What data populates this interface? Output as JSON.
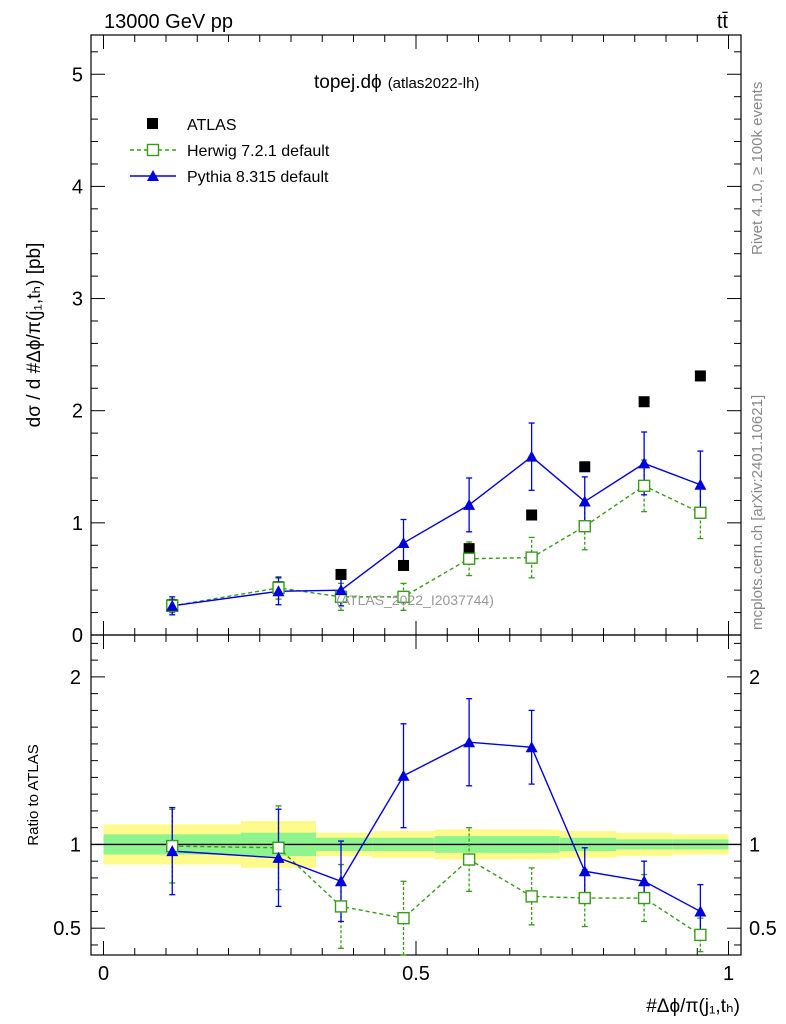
{
  "header": {
    "left": "13000 GeV pp",
    "right": "tt̄"
  },
  "side_labels": {
    "rivet": "Rivet 4.1.0, ≥ 100k events",
    "mcplots": "mcplots.cern.ch [arXiv:2401.10621]"
  },
  "plot": {
    "title_main": "topej.dϕ",
    "title_sub": "(atlas2022-lh)",
    "watermark": "(ATLAS_2022_I2037744)",
    "ylabel_main": "dσ / d #Δϕ/π(j₁,tₕ) [pb]",
    "ylabel_ratio": "Ratio to ATLAS",
    "xlabel": "#Δϕ/π(j₁,tₕ)"
  },
  "legend": [
    {
      "label": "ATLAS"
    },
    {
      "label": "Herwig 7.2.1 default"
    },
    {
      "label": "Pythia 8.315 default"
    }
  ],
  "colors": {
    "data": "#000000",
    "herwig": "#3a9a1a",
    "pythia": "#0000dd",
    "band_inner": "#8ef58e",
    "band_outer": "#fffa8c"
  },
  "chart_data": [
    {
      "type": "scatter",
      "panel": "main",
      "title": "topej.dϕ (atlas2022-lh)",
      "xlabel": "#Δϕ/π(j₁,tₕ)",
      "ylabel": "dσ / d #Δϕ/π(j₁,tₕ) [pb]",
      "xlim": [
        -0.02,
        1.02
      ],
      "ylim": [
        0,
        5.35
      ],
      "yticks": [
        0,
        1,
        2,
        3,
        4,
        5
      ],
      "ytick_labels": [
        "0",
        "1",
        "2",
        "3",
        "4",
        "5"
      ],
      "series": [
        {
          "name": "ATLAS",
          "x": [
            0.11,
            0.28,
            0.38,
            0.48,
            0.585,
            0.685,
            0.77,
            0.865,
            0.955
          ],
          "y": [
            0.27,
            0.43,
            0.54,
            0.62,
            0.77,
            1.07,
            1.5,
            2.08,
            2.31
          ]
        },
        {
          "name": "Herwig 7.2.1 default",
          "x": [
            0.11,
            0.28,
            0.38,
            0.48,
            0.585,
            0.685,
            0.77,
            0.865,
            0.955
          ],
          "y": [
            0.26,
            0.42,
            0.34,
            0.34,
            0.68,
            0.69,
            0.97,
            1.33,
            1.09
          ],
          "err": [
            0.06,
            0.1,
            0.12,
            0.12,
            0.15,
            0.18,
            0.21,
            0.23,
            0.23
          ]
        },
        {
          "name": "Pythia 8.315 default",
          "x": [
            0.11,
            0.28,
            0.38,
            0.48,
            0.585,
            0.685,
            0.77,
            0.865,
            0.955
          ],
          "y": [
            0.26,
            0.39,
            0.4,
            0.82,
            1.16,
            1.59,
            1.19,
            1.53,
            1.34
          ],
          "err": [
            0.08,
            0.12,
            0.14,
            0.21,
            0.24,
            0.3,
            0.22,
            0.28,
            0.3
          ]
        }
      ]
    },
    {
      "type": "scatter",
      "panel": "ratio",
      "ylabel": "Ratio to ATLAS",
      "xlabel": "#Δϕ/π(j₁,tₕ)",
      "xlim": [
        -0.02,
        1.02
      ],
      "ylim": [
        0.34,
        2.25
      ],
      "xticks": [
        0,
        0.5,
        1
      ],
      "xtick_labels": [
        "0",
        "0.5",
        "1"
      ],
      "yticks": [
        0.5,
        1,
        2
      ],
      "ytick_labels": [
        "0.5",
        "1",
        "2"
      ],
      "reference_line": 1,
      "bands": [
        {
          "x0": 0.0,
          "x1": 0.22,
          "inner": 0.06,
          "outer": 0.12
        },
        {
          "x0": 0.22,
          "x1": 0.34,
          "inner": 0.07,
          "outer": 0.14
        },
        {
          "x0": 0.34,
          "x1": 0.43,
          "inner": 0.04,
          "outer": 0.07
        },
        {
          "x0": 0.43,
          "x1": 0.53,
          "inner": 0.04,
          "outer": 0.08
        },
        {
          "x0": 0.53,
          "x1": 0.64,
          "inner": 0.05,
          "outer": 0.09
        },
        {
          "x0": 0.64,
          "x1": 0.73,
          "inner": 0.05,
          "outer": 0.09
        },
        {
          "x0": 0.73,
          "x1": 0.82,
          "inner": 0.04,
          "outer": 0.08
        },
        {
          "x0": 0.82,
          "x1": 0.91,
          "inner": 0.03,
          "outer": 0.07
        },
        {
          "x0": 0.91,
          "x1": 1.0,
          "inner": 0.03,
          "outer": 0.06
        }
      ],
      "series": [
        {
          "name": "Herwig 7.2.1 default",
          "x": [
            0.11,
            0.28,
            0.38,
            0.48,
            0.585,
            0.685,
            0.77,
            0.865,
            0.955
          ],
          "y": [
            0.99,
            0.98,
            0.63,
            0.56,
            0.91,
            0.69,
            0.68,
            0.68,
            0.46
          ],
          "err": [
            0.22,
            0.25,
            0.25,
            0.22,
            0.19,
            0.17,
            0.17,
            0.14,
            0.1
          ]
        },
        {
          "name": "Pythia 8.315 default",
          "x": [
            0.11,
            0.28,
            0.38,
            0.48,
            0.585,
            0.685,
            0.77,
            0.865,
            0.955
          ],
          "y": [
            0.96,
            0.92,
            0.78,
            1.41,
            1.61,
            1.58,
            0.84,
            0.78,
            0.6
          ],
          "err": [
            0.26,
            0.29,
            0.24,
            0.31,
            0.26,
            0.22,
            0.14,
            0.12,
            0.16
          ]
        }
      ]
    }
  ]
}
